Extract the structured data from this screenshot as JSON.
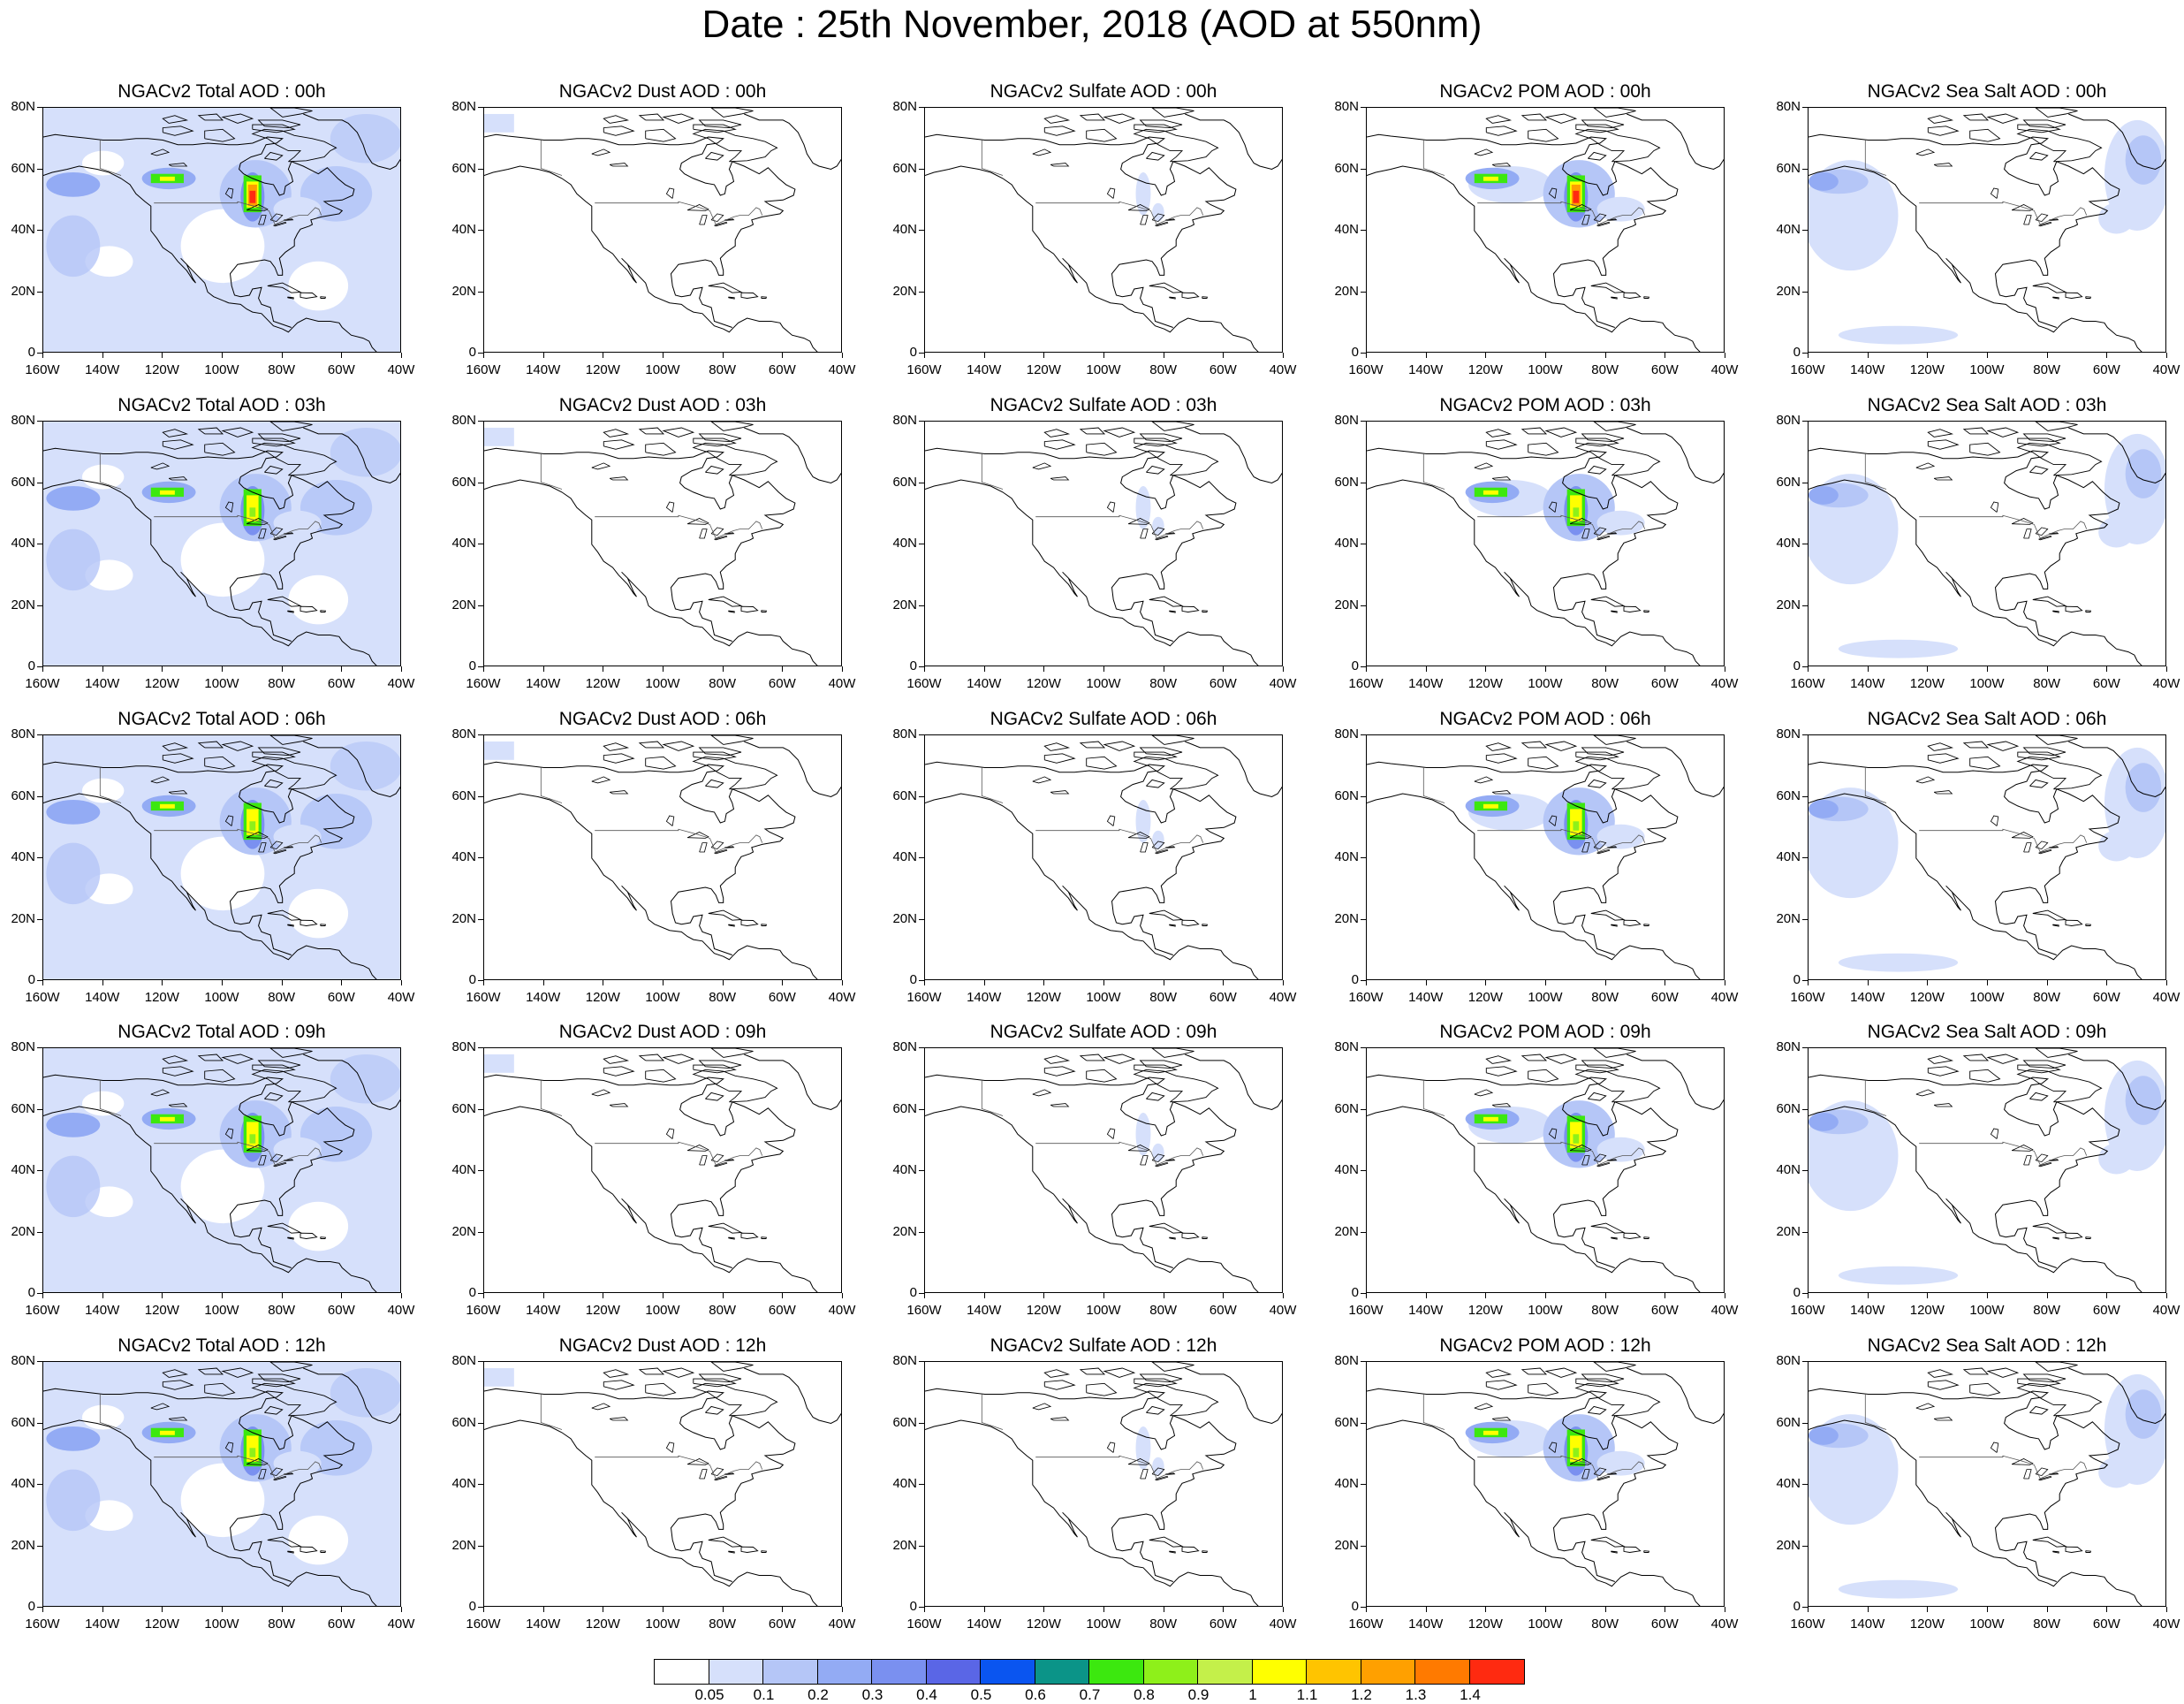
{
  "title": "Date : 25th November, 2018 (AOD at 550nm)",
  "chart_data": {
    "type": "heatmap",
    "description_unit": "AOD at 550nm",
    "x_ticks": [
      "160W",
      "140W",
      "120W",
      "100W",
      "80W",
      "60W",
      "40W"
    ],
    "y_ticks": [
      "80N",
      "60N",
      "40N",
      "20N",
      "0"
    ],
    "xlim": [
      -160,
      -40
    ],
    "ylim": [
      0,
      80
    ],
    "panels": [
      {
        "title": "NGACv2 Total AOD : 00h",
        "species": "total",
        "hour": "00h"
      },
      {
        "title": "NGACv2 Dust AOD : 00h",
        "species": "dust",
        "hour": "00h"
      },
      {
        "title": "NGACv2 Sulfate AOD : 00h",
        "species": "sulfate",
        "hour": "00h"
      },
      {
        "title": "NGACv2 POM AOD : 00h",
        "species": "pom",
        "hour": "00h"
      },
      {
        "title": "NGACv2 Sea Salt AOD : 00h",
        "species": "seasalt",
        "hour": "00h"
      },
      {
        "title": "NGACv2 Total AOD : 03h",
        "species": "total",
        "hour": "03h"
      },
      {
        "title": "NGACv2 Dust AOD : 03h",
        "species": "dust",
        "hour": "03h"
      },
      {
        "title": "NGACv2 Sulfate AOD : 03h",
        "species": "sulfate",
        "hour": "03h"
      },
      {
        "title": "NGACv2 POM AOD : 03h",
        "species": "pom",
        "hour": "03h"
      },
      {
        "title": "NGACv2 Sea Salt AOD : 03h",
        "species": "seasalt",
        "hour": "03h"
      },
      {
        "title": "NGACv2 Total AOD : 06h",
        "species": "total",
        "hour": "06h"
      },
      {
        "title": "NGACv2 Dust AOD : 06h",
        "species": "dust",
        "hour": "06h"
      },
      {
        "title": "NGACv2 Sulfate AOD : 06h",
        "species": "sulfate",
        "hour": "06h"
      },
      {
        "title": "NGACv2 POM AOD : 06h",
        "species": "pom",
        "hour": "06h"
      },
      {
        "title": "NGACv2 Sea Salt AOD : 06h",
        "species": "seasalt",
        "hour": "06h"
      },
      {
        "title": "NGACv2 Total AOD : 09h",
        "species": "total",
        "hour": "09h"
      },
      {
        "title": "NGACv2 Dust AOD : 09h",
        "species": "dust",
        "hour": "09h"
      },
      {
        "title": "NGACv2 Sulfate AOD : 09h",
        "species": "sulfate",
        "hour": "09h"
      },
      {
        "title": "NGACv2 POM AOD : 09h",
        "species": "pom",
        "hour": "09h"
      },
      {
        "title": "NGACv2 Sea Salt  AOD : 09h",
        "species": "seasalt",
        "hour": "09h"
      },
      {
        "title": "NGACv2 Total AOD  : 12h",
        "species": "total",
        "hour": "12h"
      },
      {
        "title": "NGACv2 Dust AOD : 12h",
        "species": "dust",
        "hour": "12h"
      },
      {
        "title": "NGACv2 Sulfate AOD : 12h",
        "species": "sulfate",
        "hour": "12h"
      },
      {
        "title": "NGACv2 POM  AOD : 12h",
        "species": "pom",
        "hour": "12h"
      },
      {
        "title": "NGACv2 Sea Salt  AOD : 12h",
        "species": "seasalt",
        "hour": "12h"
      }
    ],
    "colorbar": {
      "labels": [
        "0.05",
        "0.1",
        "0.2",
        "0.3",
        "0.4",
        "0.5",
        "0.6",
        "0.7",
        "0.8",
        "0.9",
        "1",
        "1.1",
        "1.2",
        "1.3",
        "1.4"
      ],
      "colors": [
        "#ffffff",
        "#d6e0fb",
        "#b5c6f7",
        "#93abf4",
        "#7a90f0",
        "#5a66e6",
        "#0a55f0",
        "#0b9488",
        "#3ce80f",
        "#8ef01a",
        "#c4f04a",
        "#ffff00",
        "#ffc400",
        "#ffa000",
        "#ff7a00",
        "#ff2a10"
      ]
    }
  }
}
